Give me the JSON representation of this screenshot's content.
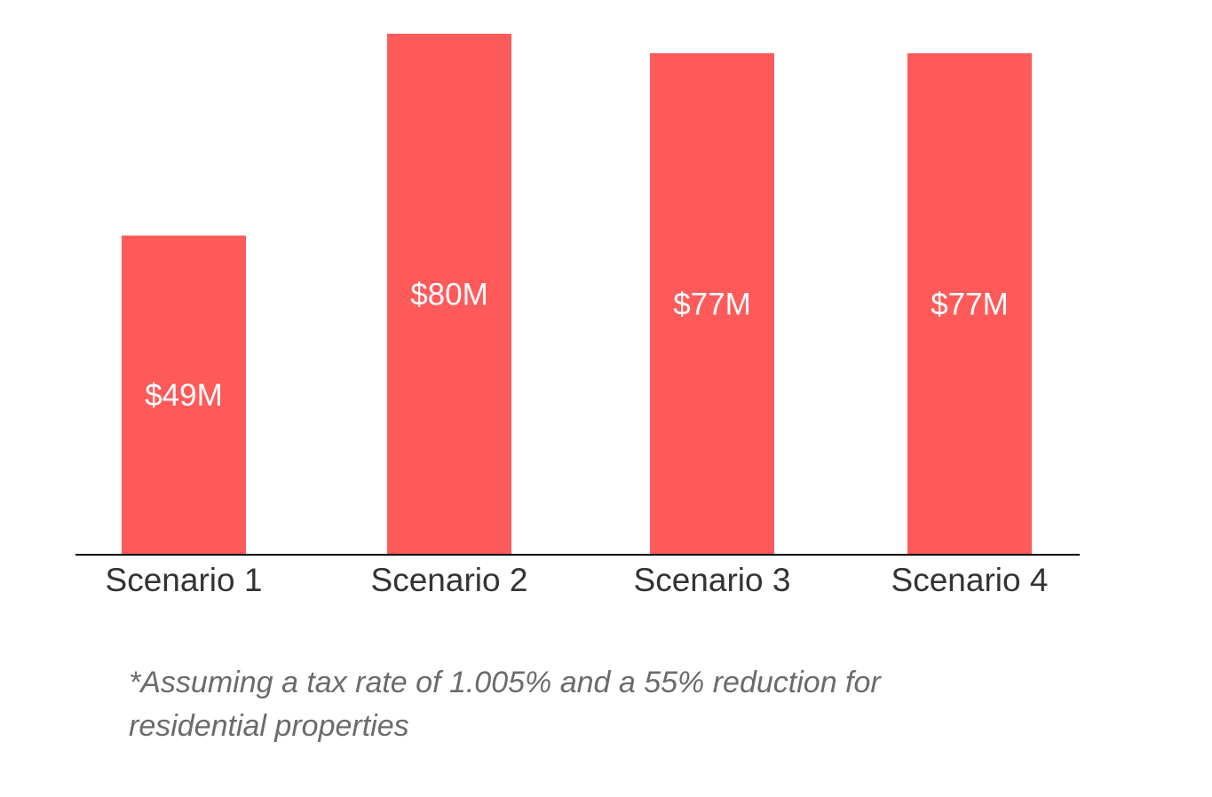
{
  "chart_data": {
    "type": "bar",
    "categories": [
      "Scenario 1",
      "Scenario 2",
      "Scenario 3",
      "Scenario 4"
    ],
    "values": [
      49,
      80,
      77,
      77
    ],
    "data_labels": [
      "$49M",
      "$80M",
      "$77M",
      "$77M"
    ],
    "title": "",
    "xlabel": "",
    "ylabel": "",
    "ylim": [
      0,
      80
    ],
    "grid": false,
    "legend": "none",
    "bar_color": "#ff5a5a",
    "axis_color": "#000000",
    "category_label_color": "#333333",
    "data_label_color": "#ffffff"
  },
  "footnote": {
    "line1": "*Assuming a tax rate of 1.005% and a 55% reduction for",
    "line2": "residential properties",
    "color": "#6b6b6b"
  }
}
